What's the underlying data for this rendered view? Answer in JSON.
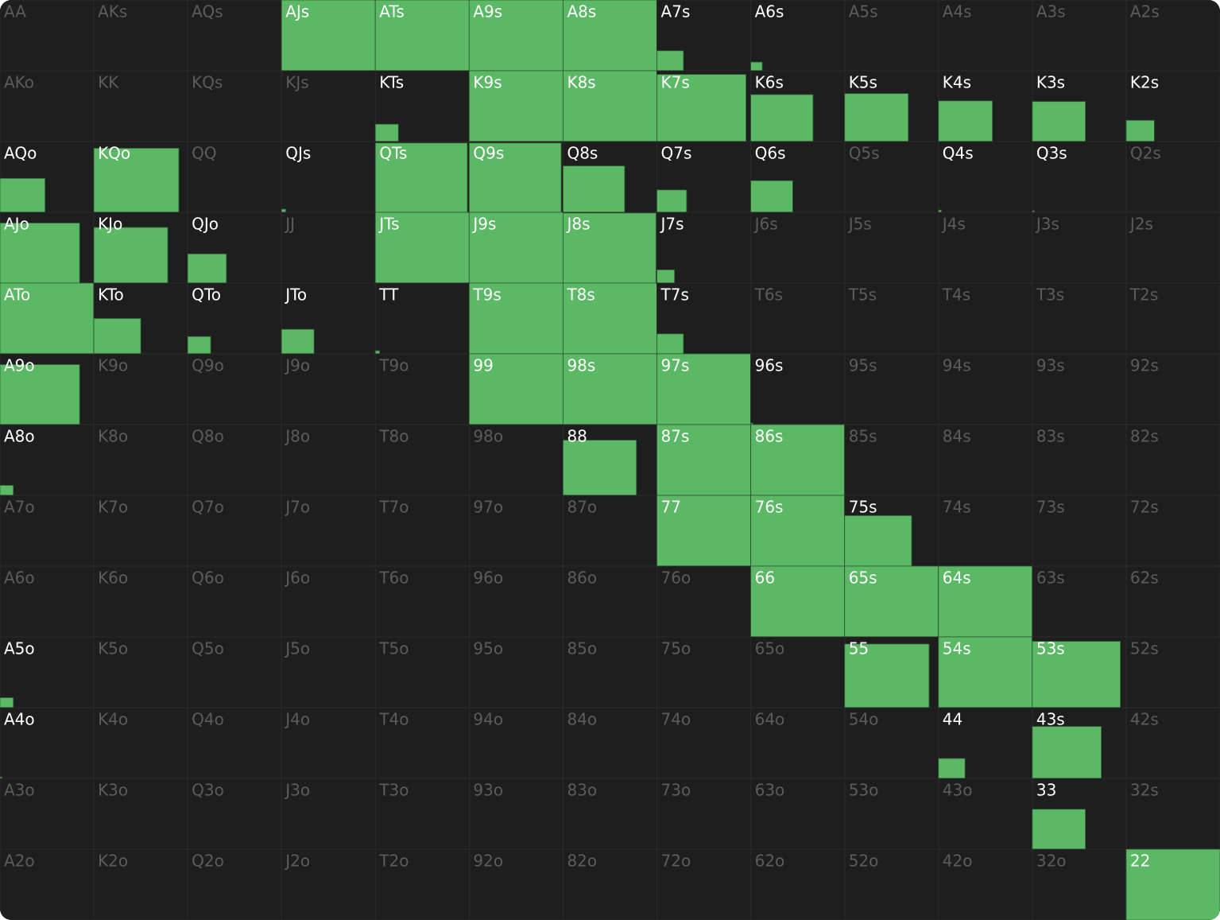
{
  "chart_data": {
    "type": "grid",
    "color": "#5bb865",
    "text_color_on": "#ffffff",
    "text_color_off": "#5c5c5c",
    "background": "#1e1e1e",
    "rows": [
      {
        "labels": [
          "AA",
          "AKs",
          "AQs",
          "AJs",
          "ATs",
          "A9s",
          "A8s",
          "A7s",
          "A6s",
          "A5s",
          "A4s",
          "A3s",
          "A2s"
        ],
        "values": [
          0,
          0,
          0,
          100,
          100,
          100,
          100,
          8,
          1.5,
          0,
          0,
          0,
          0
        ]
      },
      {
        "labels": [
          "AKo",
          "KK",
          "KQs",
          "KJs",
          "KTs",
          "K9s",
          "K8s",
          "K7s",
          "K6s",
          "K5s",
          "K4s",
          "K3s",
          "K2s"
        ],
        "values": [
          0,
          0,
          0,
          0,
          6,
          100,
          100,
          90,
          44,
          46,
          33,
          32,
          9
        ]
      },
      {
        "labels": [
          "AQo",
          "KQo",
          "QQ",
          "QJs",
          "QTs",
          "Q9s",
          "Q8s",
          "Q7s",
          "Q6s",
          "Q5s",
          "Q4s",
          "Q3s",
          "Q2s"
        ],
        "values": [
          23,
          82,
          0,
          0.2,
          96,
          96,
          43,
          10,
          20,
          0,
          0.1,
          0.05,
          0
        ]
      },
      {
        "labels": [
          "AJo",
          "KJo",
          "QJo",
          "JJ",
          "JTs",
          "J9s",
          "J8s",
          "J7s",
          "J6s",
          "J5s",
          "J4s",
          "J3s",
          "J2s"
        ],
        "values": [
          72,
          62,
          17,
          0,
          100,
          100,
          98,
          3.5,
          0,
          0,
          0,
          0,
          0
        ]
      },
      {
        "labels": [
          "ATo",
          "KTo",
          "QTo",
          "JTo",
          "TT",
          "T9s",
          "T8s",
          "T7s",
          "T6s",
          "T5s",
          "T4s",
          "T3s",
          "T2s"
        ],
        "values": [
          100,
          25,
          6,
          12,
          0.2,
          100,
          100,
          8,
          0,
          0,
          0,
          0,
          0
        ]
      },
      {
        "labels": [
          "A9o",
          "K9o",
          "Q9o",
          "J9o",
          "T9o",
          "99",
          "98s",
          "97s",
          "96s",
          "95s",
          "94s",
          "93s",
          "92s"
        ],
        "values": [
          72,
          0,
          0,
          0,
          0,
          100,
          100,
          100,
          0.05,
          0,
          0,
          0,
          0
        ]
      },
      {
        "labels": [
          "A8o",
          "K8o",
          "Q8o",
          "J8o",
          "T8o",
          "98o",
          "88",
          "87s",
          "86s",
          "85s",
          "84s",
          "83s",
          "82s"
        ],
        "values": [
          2,
          0,
          0,
          0,
          0,
          0,
          61,
          100,
          100,
          0,
          0,
          0,
          0
        ]
      },
      {
        "labels": [
          "A7o",
          "K7o",
          "Q7o",
          "J7o",
          "T7o",
          "97o",
          "87o",
          "77",
          "76s",
          "75s",
          "74s",
          "73s",
          "72s"
        ],
        "values": [
          0,
          0,
          0,
          0,
          0,
          0,
          0,
          100,
          100,
          51,
          0,
          0,
          0
        ]
      },
      {
        "labels": [
          "A6o",
          "K6o",
          "Q6o",
          "J6o",
          "T6o",
          "96o",
          "86o",
          "76o",
          "66",
          "65s",
          "64s",
          "63s",
          "62s"
        ],
        "values": [
          0,
          0,
          0,
          0,
          0,
          0,
          0,
          0,
          100,
          100,
          100,
          0,
          0
        ]
      },
      {
        "labels": [
          "A5o",
          "K5o",
          "Q5o",
          "J5o",
          "T5o",
          "95o",
          "85o",
          "75o",
          "65o",
          "55",
          "54s",
          "53s",
          "52s"
        ],
        "values": [
          2,
          0,
          0,
          0,
          0,
          0,
          0,
          0,
          0,
          81,
          100,
          88,
          0
        ]
      },
      {
        "labels": [
          "A4o",
          "K4o",
          "Q4o",
          "J4o",
          "T4o",
          "94o",
          "84o",
          "74o",
          "64o",
          "54o",
          "44",
          "43s",
          "42s"
        ],
        "values": [
          0.05,
          0,
          0,
          0,
          0,
          0,
          0,
          0,
          0,
          0,
          8,
          54,
          0
        ]
      },
      {
        "labels": [
          "A3o",
          "K3o",
          "Q3o",
          "J3o",
          "T3o",
          "93o",
          "83o",
          "73o",
          "63o",
          "53o",
          "43o",
          "33",
          "32s"
        ],
        "values": [
          0,
          0,
          0,
          0,
          0,
          0,
          0,
          0,
          0,
          0,
          0,
          32,
          0
        ]
      },
      {
        "labels": [
          "A2o",
          "K2o",
          "Q2o",
          "J2o",
          "T2o",
          "92o",
          "82o",
          "72o",
          "62o",
          "52o",
          "42o",
          "32o",
          "22"
        ],
        "values": [
          0,
          0,
          0,
          0,
          0,
          0,
          0,
          0,
          0,
          0,
          0,
          0,
          100
        ]
      }
    ]
  }
}
